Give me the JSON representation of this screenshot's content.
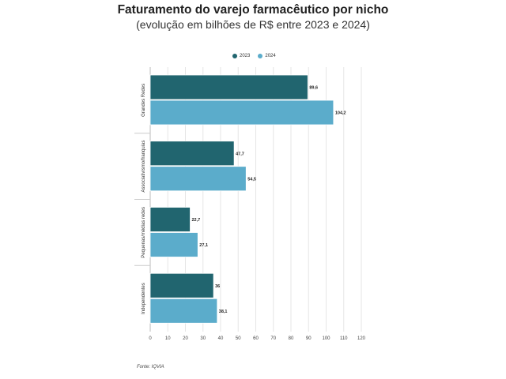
{
  "title": "Faturamento do varejo farmacêutico por nicho",
  "subtitle": "(evolução em bilhões de R$ entre 2023 e 2024)",
  "source": "Fonte: IQVIA",
  "colors": {
    "series_2023": "#21656f",
    "series_2024": "#5baccb",
    "grid": "#e6e6e6",
    "bar_stroke": "#ffffff"
  },
  "chart_data": {
    "type": "bar",
    "orientation": "horizontal",
    "title": "Faturamento do varejo farmacêutico por nicho",
    "subtitle": "(evolução em bilhões de R$ entre 2023 e 2024)",
    "categories": [
      "Grandes Redes",
      "Associativismo/franquias",
      "Pequenas/médias redes",
      "Independentes"
    ],
    "series": [
      {
        "name": "2023",
        "values": [
          89.6,
          47.7,
          22.7,
          36
        ],
        "labels": [
          "89,6",
          "47,7",
          "22,7",
          "36"
        ]
      },
      {
        "name": "2024",
        "values": [
          104.2,
          54.5,
          27.1,
          38.1
        ],
        "labels": [
          "104,2",
          "54,5",
          "27,1",
          "38,1"
        ]
      }
    ],
    "xlim": [
      0,
      120
    ],
    "xticks": [
      "0",
      "10",
      "20",
      "30",
      "40",
      "50",
      "60",
      "70",
      "80",
      "90",
      "100",
      "110",
      "120"
    ],
    "grid": true,
    "legend": "top-center"
  }
}
